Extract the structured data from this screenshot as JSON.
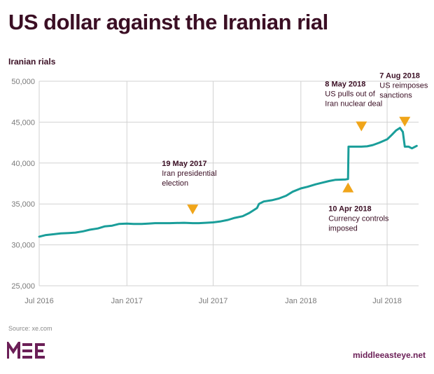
{
  "chart_data": {
    "type": "line",
    "title": "US dollar against the Iranian rial",
    "ylabel": "Iranian rials",
    "xlabel": "",
    "ylim": [
      25000,
      50000
    ],
    "yticks": [
      "25,000",
      "30,000",
      "35,000",
      "40,000",
      "45,000",
      "50,000"
    ],
    "ytick_values": [
      25000,
      30000,
      35000,
      40000,
      45000,
      50000
    ],
    "xticks": [
      "Jul 2016",
      "Jan 2017",
      "Jul 2017",
      "Jan 2018",
      "Jul 2018"
    ],
    "xtick_dates": [
      "2016-07-01",
      "2017-01-01",
      "2017-07-01",
      "2018-01-01",
      "2018-07-01"
    ],
    "xlim": [
      "2016-07-01",
      "2018-09-05"
    ],
    "grid": true,
    "line_color": "#1a9e9a",
    "marker_color": "#f0a51a",
    "series": [
      {
        "name": "",
        "points": [
          [
            "2016-07-01",
            31000
          ],
          [
            "2016-07-15",
            31200
          ],
          [
            "2016-08-01",
            31300
          ],
          [
            "2016-08-15",
            31400
          ],
          [
            "2016-09-01",
            31450
          ],
          [
            "2016-09-15",
            31500
          ],
          [
            "2016-10-01",
            31650
          ],
          [
            "2016-10-15",
            31850
          ],
          [
            "2016-11-01",
            32000
          ],
          [
            "2016-11-15",
            32250
          ],
          [
            "2016-12-01",
            32350
          ],
          [
            "2016-12-15",
            32550
          ],
          [
            "2017-01-01",
            32600
          ],
          [
            "2017-01-15",
            32550
          ],
          [
            "2017-02-01",
            32550
          ],
          [
            "2017-02-15",
            32600
          ],
          [
            "2017-03-01",
            32650
          ],
          [
            "2017-04-01",
            32650
          ],
          [
            "2017-05-01",
            32700
          ],
          [
            "2017-05-19",
            32650
          ],
          [
            "2017-06-01",
            32650
          ],
          [
            "2017-06-15",
            32700
          ],
          [
            "2017-07-01",
            32750
          ],
          [
            "2017-07-15",
            32850
          ],
          [
            "2017-08-01",
            33050
          ],
          [
            "2017-08-15",
            33300
          ],
          [
            "2017-09-01",
            33500
          ],
          [
            "2017-09-15",
            33900
          ],
          [
            "2017-10-01",
            34500
          ],
          [
            "2017-10-05",
            35000
          ],
          [
            "2017-10-15",
            35300
          ],
          [
            "2017-11-01",
            35450
          ],
          [
            "2017-11-15",
            35650
          ],
          [
            "2017-12-01",
            36000
          ],
          [
            "2017-12-15",
            36500
          ],
          [
            "2018-01-01",
            36900
          ],
          [
            "2018-01-15",
            37100
          ],
          [
            "2018-02-01",
            37400
          ],
          [
            "2018-02-15",
            37600
          ],
          [
            "2018-03-01",
            37800
          ],
          [
            "2018-03-15",
            37950
          ],
          [
            "2018-04-05",
            38000
          ],
          [
            "2018-04-10",
            38050
          ],
          [
            "2018-04-11",
            42000
          ],
          [
            "2018-04-20",
            42000
          ],
          [
            "2018-05-08",
            42000
          ],
          [
            "2018-05-20",
            42050
          ],
          [
            "2018-06-01",
            42200
          ],
          [
            "2018-06-15",
            42500
          ],
          [
            "2018-07-01",
            42900
          ],
          [
            "2018-07-10",
            43400
          ],
          [
            "2018-07-20",
            44000
          ],
          [
            "2018-07-28",
            44300
          ],
          [
            "2018-08-03",
            43800
          ],
          [
            "2018-08-07",
            42000
          ],
          [
            "2018-08-15",
            42000
          ],
          [
            "2018-08-22",
            41800
          ],
          [
            "2018-09-01",
            42100
          ]
        ]
      }
    ],
    "annotations": [
      {
        "date": "19 May 2017",
        "lines": [
          "Iran presidential",
          "election"
        ],
        "x": "2017-05-19",
        "y": 32700
      },
      {
        "date": "8 May 2018",
        "lines": [
          "US pulls out of",
          "Iran nuclear deal"
        ],
        "x": "2018-05-08",
        "y": 42000
      },
      {
        "date": "10 Apr 2018",
        "lines": [
          "Currency controls",
          "imposed"
        ],
        "x": "2018-04-10",
        "y": 38050
      },
      {
        "date": "7 Aug 2018",
        "lines": [
          "US reimposes",
          "sanctions"
        ],
        "x": "2018-08-07",
        "y": 44200
      }
    ]
  },
  "footer": {
    "source": "Source: xe.com",
    "logo": "MEE",
    "site": "middleeasteye.net"
  }
}
